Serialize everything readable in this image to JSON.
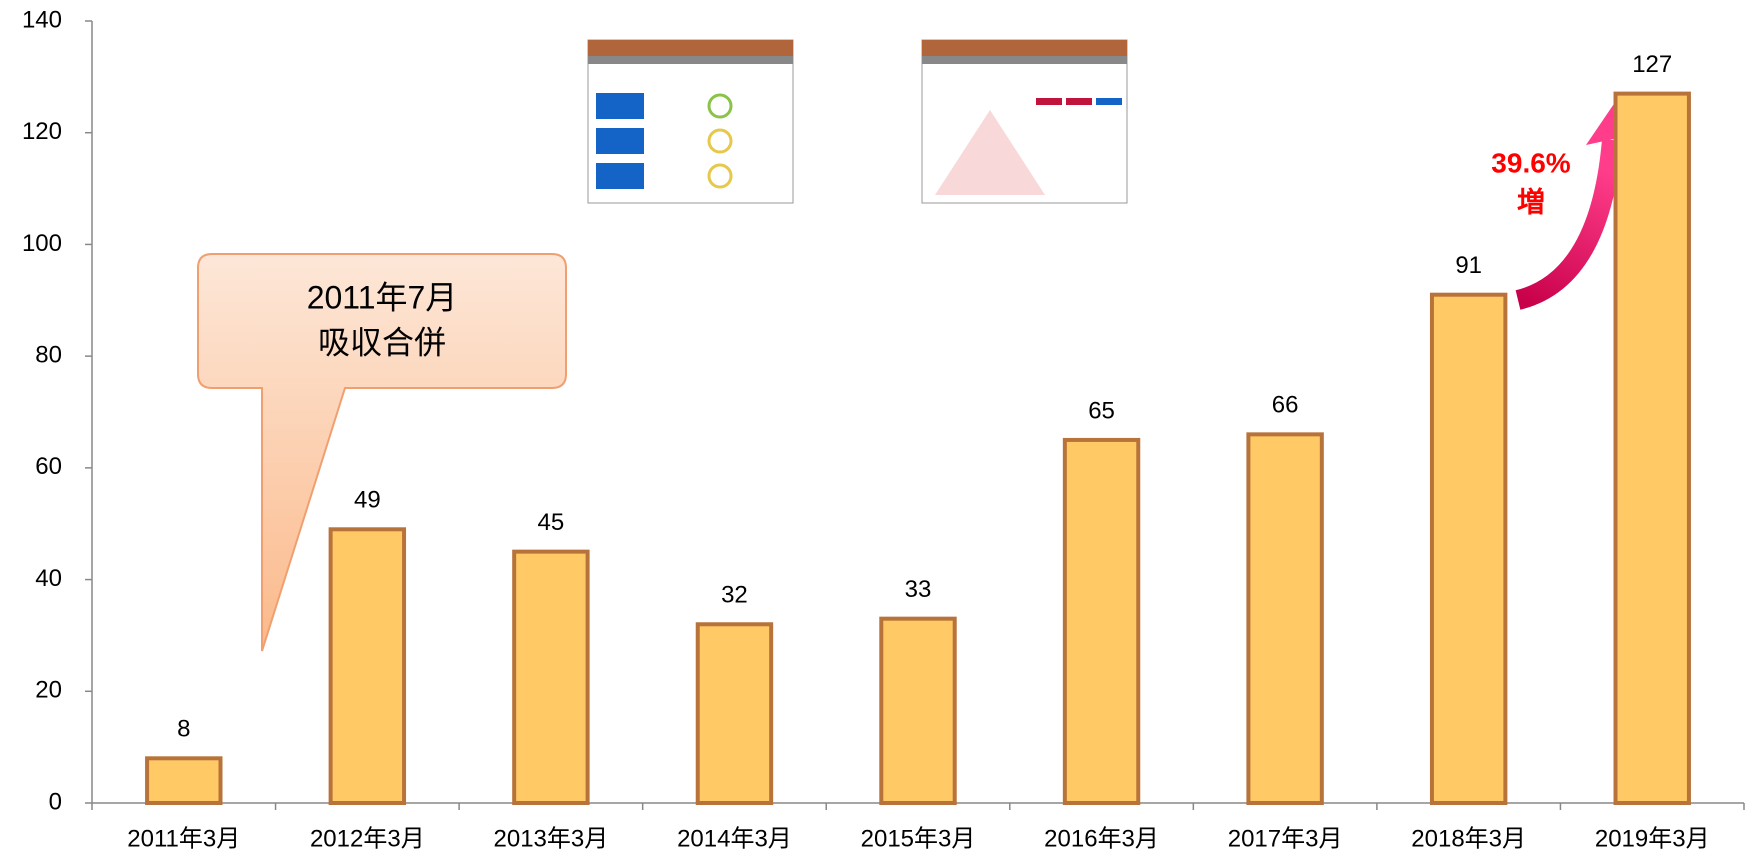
{
  "chart_data": {
    "type": "bar",
    "categories": [
      "2011年3月",
      "2012年3月",
      "2013年3月",
      "2014年3月",
      "2015年3月",
      "2016年3月",
      "2017年3月",
      "2018年3月",
      "2019年3月"
    ],
    "values": [
      8,
      49,
      45,
      32,
      33,
      65,
      66,
      91,
      127
    ],
    "color": "#FFC966",
    "edge_color": "#B8733A",
    "ylim": [
      0,
      140
    ],
    "yticks": [
      0,
      20,
      40,
      60,
      80,
      100,
      120,
      140
    ],
    "callout": [
      "2011年7月",
      "吸収合併"
    ],
    "growth_label": [
      "39.6%",
      "増"
    ]
  }
}
